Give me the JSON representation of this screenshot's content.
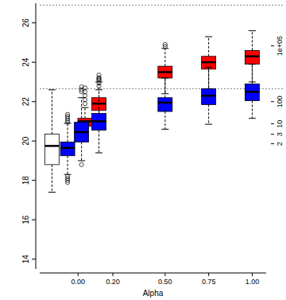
{
  "chart_data": {
    "type": "boxplot",
    "x_label": "Alpha",
    "xlim": [
      -0.22,
      1.08
    ],
    "xticks": [
      0,
      0.2,
      0.5,
      0.75,
      1
    ],
    "ylim": [
      13.5,
      27
    ],
    "yticks": [
      14,
      16,
      18,
      20,
      22,
      24,
      26
    ],
    "reference_lines": [
      22.65,
      26.9
    ],
    "y2_labels": [
      {
        "text": "1e+05",
        "y": 24.83
      },
      {
        "text": "100",
        "y": 22.0
      },
      {
        "text": "10",
        "y": 20.87
      },
      {
        "text": "3",
        "y": 20.34
      },
      {
        "text": "2",
        "y": 19.86
      }
    ],
    "series": [
      {
        "color": "#ffffff",
        "boxes": [
          {
            "x": -0.15,
            "low": 17.4,
            "q1": 18.8,
            "median": 19.75,
            "q3": 20.35,
            "high": 22.6,
            "outliers": []
          }
        ]
      },
      {
        "color": "#ff0000",
        "boxes": [
          {
            "x": 0.04,
            "low": 20.05,
            "q1": 20.75,
            "median": 21.0,
            "q3": 21.15,
            "high": 21.7,
            "outliers": [
              21.9,
              22.1,
              22.3,
              22.5,
              22.7
            ]
          },
          {
            "x": 0.12,
            "low": 20.7,
            "q1": 21.55,
            "median": 21.9,
            "q3": 22.2,
            "high": 23.0,
            "outliers": [
              23.1,
              23.2,
              23.35
            ]
          },
          {
            "x": 0.5,
            "low": 22.4,
            "q1": 23.2,
            "median": 23.5,
            "q3": 23.8,
            "high": 24.7,
            "outliers": [
              24.8,
              24.9
            ]
          },
          {
            "x": 0.75,
            "low": 22.65,
            "q1": 23.65,
            "median": 24.0,
            "q3": 24.3,
            "high": 25.3,
            "outliers": []
          },
          {
            "x": 1,
            "low": 23.0,
            "q1": 23.9,
            "median": 24.3,
            "q3": 24.6,
            "high": 25.6,
            "outliers": []
          }
        ]
      },
      {
        "color": "#0000ff",
        "boxes": [
          {
            "x": -0.06,
            "low": 18.3,
            "q1": 19.25,
            "median": 19.65,
            "q3": 19.95,
            "high": 20.9,
            "outliers": [
              20.95,
              21.05,
              21.15,
              21.25,
              21.35,
              18.2,
              18.1,
              18.0,
              17.9
            ]
          },
          {
            "x": 0.02,
            "low": 19.0,
            "q1": 19.95,
            "median": 20.45,
            "q3": 20.95,
            "high": 22.2,
            "outliers": [
              22.5,
              22.6,
              22.75,
              18.8
            ]
          },
          {
            "x": 0.12,
            "low": 19.4,
            "q1": 20.55,
            "median": 21.0,
            "q3": 21.4,
            "high": 22.6,
            "outliers": [
              22.8,
              22.95,
              23.1,
              23.2
            ]
          },
          {
            "x": 0.5,
            "low": 20.6,
            "q1": 21.5,
            "median": 21.95,
            "q3": 22.2,
            "high": 23.2,
            "outliers": []
          },
          {
            "x": 0.75,
            "low": 20.85,
            "q1": 21.85,
            "median": 22.3,
            "q3": 22.65,
            "high": 23.75,
            "outliers": []
          },
          {
            "x": 1,
            "low": 21.15,
            "q1": 22.05,
            "median": 22.5,
            "q3": 22.9,
            "high": 23.9,
            "outliers": []
          }
        ]
      }
    ]
  }
}
